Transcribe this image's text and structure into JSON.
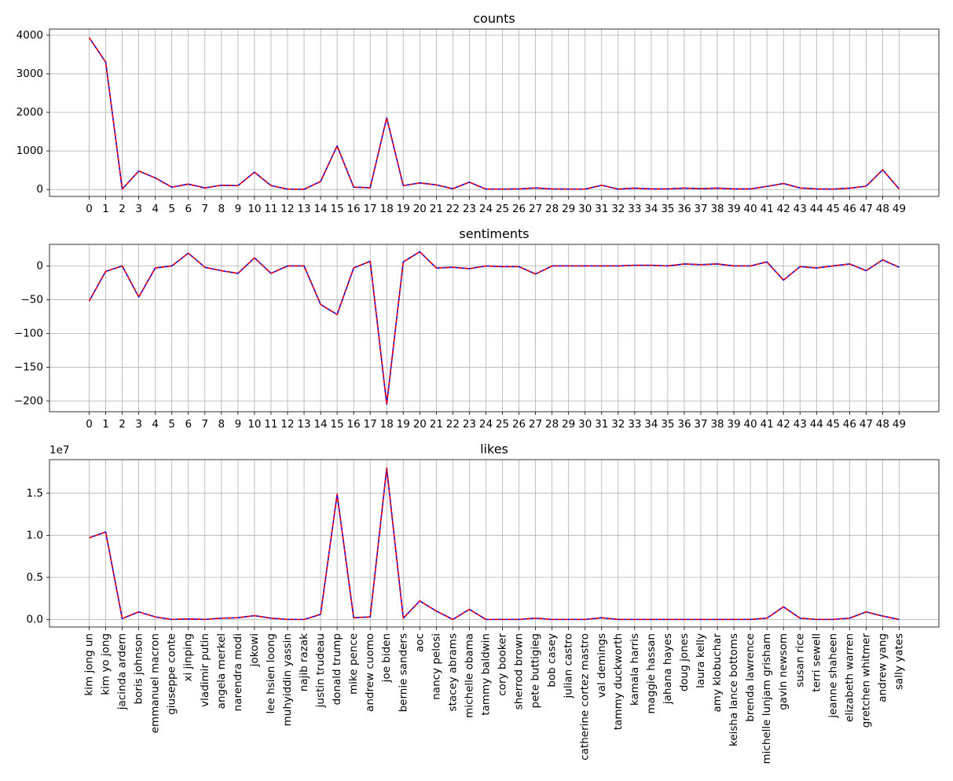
{
  "chart_data": [
    {
      "type": "line",
      "title": "counts",
      "xlabel": "",
      "ylabel": "",
      "x": [
        0,
        1,
        2,
        3,
        4,
        5,
        6,
        7,
        8,
        9,
        10,
        11,
        12,
        13,
        14,
        15,
        16,
        17,
        18,
        19,
        20,
        21,
        22,
        23,
        24,
        25,
        26,
        27,
        28,
        29,
        30,
        31,
        32,
        33,
        34,
        35,
        36,
        37,
        38,
        39,
        40,
        41,
        42,
        43,
        44,
        45,
        46,
        47,
        48,
        49
      ],
      "xticks": [
        "0",
        "1",
        "2",
        "3",
        "4",
        "5",
        "6",
        "7",
        "8",
        "9",
        "10",
        "11",
        "12",
        "13",
        "14",
        "15",
        "16",
        "17",
        "18",
        "19",
        "20",
        "21",
        "22",
        "23",
        "24",
        "25",
        "26",
        "27",
        "28",
        "29",
        "30",
        "31",
        "32",
        "33",
        "34",
        "35",
        "36",
        "37",
        "38",
        "39",
        "40",
        "41",
        "42",
        "43",
        "44",
        "45",
        "46",
        "47",
        "48",
        "49"
      ],
      "yticks": [
        0,
        1000,
        2000,
        3000,
        4000
      ],
      "ylim": [
        -180,
        4160
      ],
      "grid": true,
      "series": [
        {
          "color": "#0000ff",
          "style": "solid",
          "values": [
            3940,
            3300,
            10,
            480,
            300,
            60,
            140,
            40,
            110,
            100,
            450,
            100,
            10,
            5,
            210,
            1130,
            60,
            45,
            1860,
            100,
            170,
            120,
            20,
            190,
            10,
            10,
            15,
            40,
            15,
            10,
            10,
            110,
            10,
            35,
            15,
            15,
            35,
            20,
            35,
            15,
            15,
            80,
            155,
            40,
            15,
            10,
            35,
            85,
            510,
            15
          ]
        },
        {
          "color": "#ff0000",
          "style": "dashed",
          "values": [
            3940,
            3300,
            10,
            480,
            300,
            60,
            140,
            40,
            110,
            100,
            450,
            100,
            10,
            5,
            210,
            1130,
            60,
            45,
            1860,
            100,
            170,
            120,
            20,
            190,
            10,
            10,
            15,
            40,
            15,
            10,
            10,
            110,
            10,
            35,
            15,
            15,
            35,
            20,
            35,
            15,
            15,
            80,
            155,
            40,
            15,
            10,
            35,
            85,
            510,
            15
          ]
        }
      ]
    },
    {
      "type": "line",
      "title": "sentiments",
      "xlabel": "",
      "ylabel": "",
      "x": [
        0,
        1,
        2,
        3,
        4,
        5,
        6,
        7,
        8,
        9,
        10,
        11,
        12,
        13,
        14,
        15,
        16,
        17,
        18,
        19,
        20,
        21,
        22,
        23,
        24,
        25,
        26,
        27,
        28,
        29,
        30,
        31,
        32,
        33,
        34,
        35,
        36,
        37,
        38,
        39,
        40,
        41,
        42,
        43,
        44,
        45,
        46,
        47,
        48,
        49
      ],
      "xticks": [
        "0",
        "1",
        "2",
        "3",
        "4",
        "5",
        "6",
        "7",
        "8",
        "9",
        "10",
        "11",
        "12",
        "13",
        "14",
        "15",
        "16",
        "17",
        "18",
        "19",
        "20",
        "21",
        "22",
        "23",
        "24",
        "25",
        "26",
        "27",
        "28",
        "29",
        "30",
        "31",
        "32",
        "33",
        "34",
        "35",
        "36",
        "37",
        "38",
        "39",
        "40",
        "41",
        "42",
        "43",
        "44",
        "45",
        "46",
        "47",
        "48",
        "49"
      ],
      "yticks": [
        -200,
        -150,
        -100,
        -50,
        0
      ],
      "ylim": [
        -216,
        32
      ],
      "grid": true,
      "series": [
        {
          "color": "#0000ff",
          "style": "solid",
          "values": [
            -52,
            -8,
            0,
            -46,
            -3,
            0,
            19,
            -2,
            -7,
            -11,
            12,
            -11,
            0,
            0,
            -57,
            -72,
            -3,
            7,
            -205,
            6,
            21,
            -3,
            -2,
            -4,
            0,
            -1,
            -1,
            -12,
            0,
            0,
            0,
            0,
            0,
            1,
            1,
            0,
            3,
            2,
            3,
            0,
            0,
            6,
            -21,
            -1,
            -3,
            0,
            3,
            -7,
            9,
            -2
          ]
        },
        {
          "color": "#ff0000",
          "style": "dashed",
          "values": [
            -52,
            -8,
            0,
            -46,
            -3,
            0,
            19,
            -2,
            -7,
            -11,
            12,
            -11,
            0,
            0,
            -57,
            -72,
            -3,
            7,
            -205,
            6,
            21,
            -3,
            -2,
            -4,
            0,
            -1,
            -1,
            -12,
            0,
            0,
            0,
            0,
            0,
            1,
            1,
            0,
            3,
            2,
            3,
            0,
            0,
            6,
            -21,
            -1,
            -3,
            0,
            3,
            -7,
            9,
            -2
          ]
        }
      ]
    },
    {
      "type": "line",
      "title": "likes",
      "xlabel": "",
      "ylabel": "",
      "offset_text": "1e7",
      "categories": [
        "kim jong un",
        "kim yo jong",
        "jacinda ardern",
        "boris johnson",
        "emmanuel macron",
        "giuseppe conte",
        "xi jinping",
        "vladimir putin",
        "angela merkel",
        "narendra modi",
        "jokowi",
        "lee hsien loong",
        "muhyiddin yassin",
        "najib razak",
        "justin trudeau",
        "donald trump",
        "mike pence",
        "andrew cuomo",
        "joe biden",
        "bernie sanders",
        "aoc",
        "nancy pelosi",
        "stacey abrams",
        "michelle obama",
        "tammy baldwin",
        "cory booker",
        "sherrod brown",
        "pete buttigieg",
        "bob casey",
        "julian castro",
        "catherine cortez mastro",
        "val demings",
        "tammy duckworth",
        "kamala harris",
        "maggie hassan",
        "jahana hayes",
        "doug jones",
        "laura kelly",
        "amy klobuchar",
        "keisha lance bottoms",
        "brenda lawrence",
        "michelle lunjam grisham",
        "gavin newsom",
        "susan rice",
        "terri sewell",
        "jeanne shaheen",
        "elizabeth warren",
        "gretchen whitmer",
        "andrew yang",
        "sally yates"
      ],
      "yticks": [
        "0.0",
        "0.5",
        "1.0",
        "1.5"
      ],
      "ytick_values": [
        0,
        0.5,
        1.0,
        1.5
      ],
      "ylim": [
        -0.09,
        1.9
      ],
      "grid": true,
      "series": [
        {
          "color": "#0000ff",
          "style": "solid",
          "values": [
            0.97,
            1.04,
            0.01,
            0.09,
            0.03,
            0.0,
            0.005,
            0.0,
            0.015,
            0.02,
            0.045,
            0.015,
            0.0,
            0.0,
            0.06,
            1.49,
            0.02,
            0.03,
            1.8,
            0.015,
            0.22,
            0.1,
            0.0,
            0.12,
            0.0,
            0.0,
            0.0,
            0.015,
            0.0,
            0.0,
            0.0,
            0.02,
            0.0,
            0.0,
            0.0,
            0.0,
            0.0,
            0.0,
            0.0,
            0.0,
            0.0,
            0.015,
            0.15,
            0.015,
            0.0,
            0.0,
            0.015,
            0.09,
            0.04,
            0.0
          ]
        },
        {
          "color": "#ff0000",
          "style": "dashed",
          "values": [
            0.97,
            1.04,
            0.01,
            0.09,
            0.03,
            0.0,
            0.005,
            0.0,
            0.015,
            0.02,
            0.045,
            0.015,
            0.0,
            0.0,
            0.06,
            1.49,
            0.02,
            0.03,
            1.8,
            0.015,
            0.22,
            0.1,
            0.0,
            0.12,
            0.0,
            0.0,
            0.0,
            0.015,
            0.0,
            0.0,
            0.0,
            0.02,
            0.0,
            0.0,
            0.0,
            0.0,
            0.0,
            0.0,
            0.0,
            0.0,
            0.0,
            0.015,
            0.15,
            0.015,
            0.0,
            0.0,
            0.015,
            0.09,
            0.04,
            0.0
          ]
        }
      ]
    }
  ]
}
